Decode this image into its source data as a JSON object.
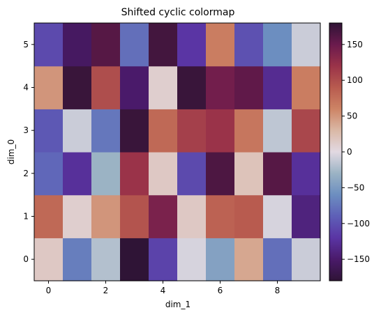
{
  "chart_data": {
    "type": "heatmap",
    "title": "Shifted cyclic colormap",
    "xlabel": "dim_1",
    "ylabel": "dim_0",
    "x_ticks": [
      "0",
      "2",
      "4",
      "6",
      "8"
    ],
    "y_ticks": [
      "0",
      "1",
      "2",
      "3",
      "4",
      "5"
    ],
    "colorbar": {
      "colormap": "twilight_shifted",
      "vmin": -180,
      "vmax": 180,
      "ticks": [
        "−150",
        "−100",
        "−50",
        "0",
        "50",
        "100",
        "150"
      ]
    },
    "x": [
      0,
      1,
      2,
      3,
      4,
      5,
      6,
      7,
      8,
      9
    ],
    "y": [
      0,
      1,
      2,
      3,
      4,
      5
    ],
    "values": [
      [
        15,
        -70,
        -20,
        180,
        -110,
        -5,
        -45,
        40,
        -80,
        -10
      ],
      [
        80,
        10,
        50,
        95,
        140,
        15,
        85,
        90,
        -5,
        -140
      ],
      [
        -85,
        -125,
        -30,
        120,
        15,
        -105,
        165,
        20,
        160,
        -125
      ],
      [
        -95,
        -10,
        -75,
        175,
        80,
        110,
        120,
        70,
        -15,
        105
      ],
      [
        50,
        175,
        100,
        -150,
        10,
        175,
        145,
        155,
        -130,
        65
      ],
      [
        -105,
        -155,
        160,
        -80,
        170,
        -120,
        65,
        -100,
        -60,
        -10
      ]
    ],
    "grid": false
  }
}
